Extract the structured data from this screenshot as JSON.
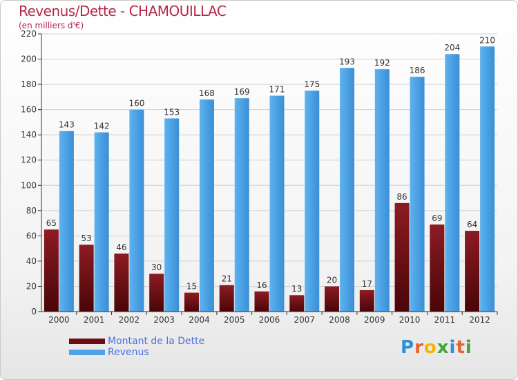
{
  "title": "Revenus/Dette - CHAMOUILLAC",
  "subtitle": "(en milliers d'€)",
  "logo": {
    "text": "Proxiti",
    "colors": [
      "#2f8fd6",
      "#e8612c",
      "#f2b705",
      "#3aa935",
      "#2f8fd6",
      "#e8612c",
      "#3aa935"
    ]
  },
  "legend": [
    {
      "label": "Montant de la Dette",
      "color": "#6b0b14"
    },
    {
      "label": "Revenus",
      "color": "#4da3e6"
    }
  ],
  "chart_data": {
    "type": "bar",
    "title": "Revenus/Dette - CHAMOUILLAC",
    "ylabel": "(en milliers d'€)",
    "categories": [
      "2000",
      "2001",
      "2002",
      "2003",
      "2004",
      "2005",
      "2006",
      "2007",
      "2008",
      "2009",
      "2010",
      "2011",
      "2012"
    ],
    "series": [
      {
        "name": "Montant de la Dette",
        "color": "#7a1018",
        "values": [
          65,
          53,
          46,
          30,
          15,
          21,
          16,
          13,
          20,
          17,
          86,
          69,
          64
        ]
      },
      {
        "name": "Revenus",
        "color": "#4da3e6",
        "values": [
          143,
          142,
          160,
          153,
          168,
          169,
          171,
          175,
          193,
          192,
          186,
          204,
          210
        ]
      }
    ],
    "ylim": [
      0,
      220
    ],
    "yticks": [
      0,
      20,
      40,
      60,
      80,
      100,
      120,
      140,
      160,
      180,
      200,
      220
    ],
    "grid": true,
    "legend_position": "bottom-left"
  }
}
